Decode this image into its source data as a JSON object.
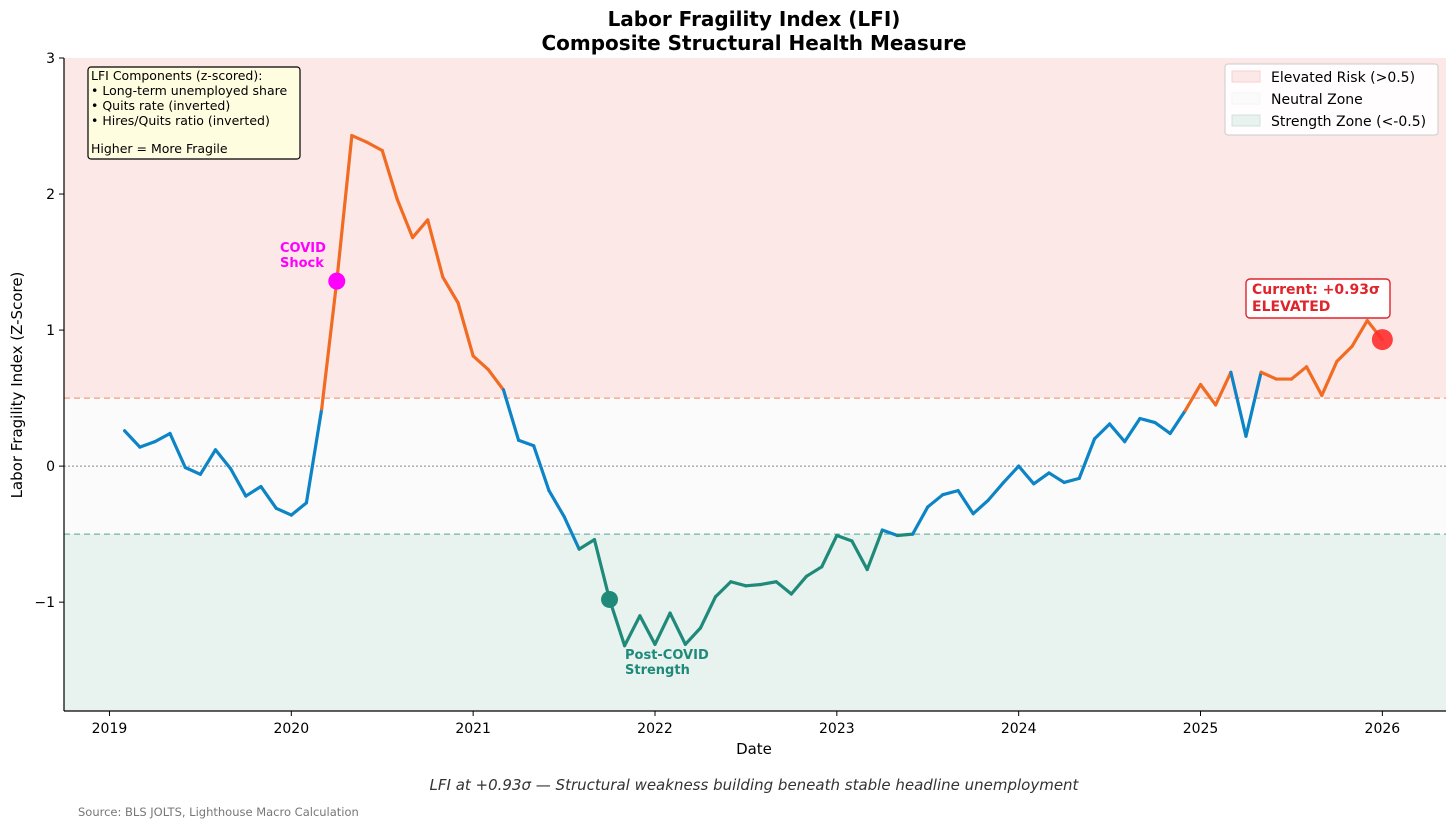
{
  "chart_data": {
    "type": "line",
    "title": "Labor Fragility Index (LFI)",
    "subtitle": "Composite Structural Health Measure",
    "xlabel": "Date",
    "ylabel": "Labor Fragility Index (Z-Score)",
    "xlim": [
      2018.75,
      2026.35
    ],
    "ylim": [
      -1.8,
      3.0
    ],
    "x_ticks": [
      2019,
      2020,
      2021,
      2022,
      2023,
      2024,
      2025,
      2026
    ],
    "x_tick_labels": [
      "2019",
      "2020",
      "2021",
      "2022",
      "2023",
      "2024",
      "2025",
      "2026"
    ],
    "y_ticks": [
      -1,
      0,
      1,
      2,
      3
    ],
    "y_tick_labels": [
      "−1",
      "0",
      "1",
      "2",
      "3"
    ],
    "thresholds": {
      "elevated": 0.5,
      "strength": -0.5
    },
    "zones": [
      {
        "name": "Elevated Risk (>0.5)",
        "from": 0.5,
        "to": 3.0,
        "color": "#fde8e8"
      },
      {
        "name": "Neutral Zone",
        "from": -0.5,
        "to": 0.5,
        "color": "#fbfbfb"
      },
      {
        "name": "Strength Zone (<-0.5)",
        "from": -1.8,
        "to": -0.5,
        "color": "#e8f2ef"
      }
    ],
    "legend": {
      "position": "top-right",
      "entries": [
        "Elevated Risk (>0.5)",
        "Neutral Zone",
        "Strength Zone (<-0.5)"
      ]
    },
    "components_box": {
      "lines": [
        "LFI Components (z-scored):",
        "• Long-term unemployed share",
        "• Quits rate (inverted)",
        "• Hires/Quits ratio (inverted)",
        "",
        "Higher = More Fragile"
      ]
    },
    "series": [
      {
        "name": "LFI",
        "colors": {
          "elevated": "#f26b22",
          "neutral": "#0c84c6",
          "strength": "#1f8a79"
        },
        "x": [
          2019.083,
          2019.167,
          2019.25,
          2019.333,
          2019.417,
          2019.5,
          2019.583,
          2019.667,
          2019.75,
          2019.833,
          2019.917,
          2020.0,
          2020.083,
          2020.167,
          2020.25,
          2020.333,
          2020.417,
          2020.5,
          2020.583,
          2020.667,
          2020.75,
          2020.833,
          2020.917,
          2021.0,
          2021.083,
          2021.167,
          2021.25,
          2021.333,
          2021.417,
          2021.5,
          2021.583,
          2021.667,
          2021.75,
          2021.833,
          2021.917,
          2022.0,
          2022.083,
          2022.167,
          2022.25,
          2022.333,
          2022.417,
          2022.5,
          2022.583,
          2022.667,
          2022.75,
          2022.833,
          2022.917,
          2023.0,
          2023.083,
          2023.167,
          2023.25,
          2023.333,
          2023.417,
          2023.5,
          2023.583,
          2023.667,
          2023.75,
          2023.833,
          2023.917,
          2024.0,
          2024.083,
          2024.167,
          2024.25,
          2024.333,
          2024.417,
          2024.5,
          2024.583,
          2024.667,
          2024.75,
          2024.833,
          2024.917,
          2025.0,
          2025.083,
          2025.167,
          2025.25,
          2025.333,
          2025.417,
          2025.5,
          2025.583,
          2025.667,
          2025.75,
          2025.833,
          2025.917,
          2026.0
        ],
        "values": [
          0.26,
          0.14,
          0.18,
          0.24,
          -0.01,
          -0.06,
          0.12,
          -0.02,
          -0.22,
          -0.15,
          -0.31,
          -0.36,
          -0.27,
          0.42,
          1.36,
          2.43,
          2.38,
          2.32,
          1.96,
          1.68,
          1.81,
          1.39,
          1.2,
          0.81,
          0.71,
          0.56,
          0.19,
          0.15,
          -0.18,
          -0.37,
          -0.61,
          -0.54,
          -0.98,
          -1.32,
          -1.1,
          -1.31,
          -1.08,
          -1.31,
          -1.19,
          -0.96,
          -0.85,
          -0.88,
          -0.87,
          -0.85,
          -0.94,
          -0.81,
          -0.74,
          -0.51,
          -0.55,
          -0.76,
          -0.47,
          -0.51,
          -0.5,
          -0.3,
          -0.21,
          -0.18,
          -0.35,
          -0.25,
          -0.12,
          0.0,
          -0.13,
          -0.05,
          -0.12,
          -0.09,
          0.2,
          0.31,
          0.18,
          0.35,
          0.32,
          0.24,
          0.41,
          0.6,
          0.45,
          0.69,
          0.22,
          0.69,
          0.64,
          0.64,
          0.73,
          0.52,
          0.77,
          0.88,
          1.07,
          0.93
        ]
      }
    ],
    "markers": [
      {
        "label": "COVID Shock",
        "x": 2020.25,
        "y": 1.36,
        "color": "#ff00ff"
      },
      {
        "label": "Post-COVID Strength",
        "x": 2021.75,
        "y": -0.98,
        "color": "#1f8a79"
      },
      {
        "label": "Current",
        "x": 2026.0,
        "y": 0.93,
        "color": "#ff2d2d"
      }
    ],
    "annotations": {
      "covid_line1": "COVID",
      "covid_line2": "Shock",
      "post_line1": "Post-COVID",
      "post_line2": "Strength",
      "current_line1": "Current: +0.93σ",
      "current_line2": "ELEVATED"
    },
    "caption": "LFI at +0.93σ — Structural weakness building beneath stable headline unemployment",
    "source": "Source: BLS JOLTS, Lighthouse Macro Calculation"
  }
}
